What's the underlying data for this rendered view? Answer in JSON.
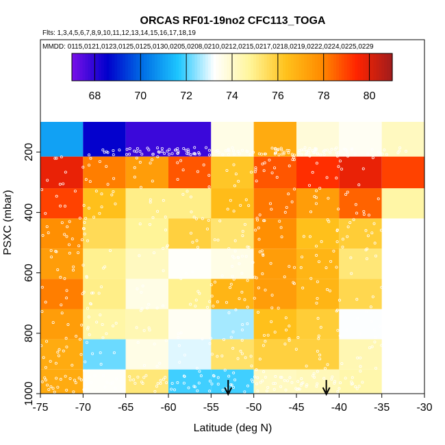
{
  "chart_data": {
    "type": "heatmap",
    "title": "ORCAS RF01-19no2 CFC113_TOGA",
    "subtitle_flights": "Flts: 1,3,4,5,6,7,8,9,10,11,12,13,14,15,16,17,18,19",
    "subtitle_dates": "MMDD: 0115,0121,0123,0125,0125,0130,0205,0208,0210,0212,0215,0217,0218,0219,0222,0224,0225,0229",
    "xlabel": "Latitude (deg N)",
    "ylabel": "PSXC (mbar)",
    "xlim": [
      -75,
      -30
    ],
    "ylim": [
      1000,
      100
    ],
    "x_ticks": [
      -75,
      -70,
      -65,
      -60,
      -55,
      -50,
      -45,
      -40,
      -35,
      -30
    ],
    "y_ticks": [
      200,
      400,
      600,
      800,
      1000
    ],
    "colorbar": {
      "range": [
        67,
        81
      ],
      "ticks": [
        68,
        70,
        72,
        74,
        76,
        78,
        80
      ],
      "colors": [
        "#7a10e8",
        "#0000cc",
        "#006fe6",
        "#1ec7ff",
        "#ffffff",
        "#fff59a",
        "#ffc21c",
        "#ff8c00",
        "#ff2400",
        "#a01c1c"
      ]
    },
    "x_bins": [
      -75,
      -70,
      -65,
      -60,
      -55,
      -50,
      -45,
      -40,
      -35,
      -30
    ],
    "p_bins": [
      100,
      215,
      320,
      420,
      520,
      620,
      720,
      820,
      920,
      1000
    ],
    "values": [
      [
        71.0,
        68.5,
        67.8,
        67.8,
        73.6,
        77.0,
        73.8,
        73.4,
        74.2
      ],
      [
        79.8,
        78.1,
        77.4,
        78.7,
        76.2,
        78.7,
        79.3,
        79.8,
        79.0
      ],
      [
        79.0,
        76.4,
        75.0,
        75.0,
        76.5,
        78.2,
        77.4,
        78.5,
        74.6
      ],
      [
        77.8,
        75.6,
        74.8,
        75.9,
        75.3,
        77.8,
        76.4,
        76.0,
        null
      ],
      [
        77.4,
        74.9,
        74.2,
        73.3,
        73.6,
        77.4,
        76.7,
        75.2,
        null
      ],
      [
        78.1,
        75.0,
        73.6,
        74.9,
        76.7,
        77.4,
        76.7,
        75.7,
        null
      ],
      [
        77.4,
        74.6,
        74.4,
        73.4,
        72.6,
        76.4,
        76.0,
        73.2,
        null
      ],
      [
        77.0,
        72.2,
        73.6,
        73.0,
        75.4,
        75.9,
        75.9,
        74.4,
        null
      ],
      [
        77.0,
        73.3,
        75.2,
        71.9,
        71.9,
        74.2,
        74.3,
        74.5,
        null
      ]
    ],
    "arrows_at_latitude": [
      -53,
      -41.5
    ]
  }
}
